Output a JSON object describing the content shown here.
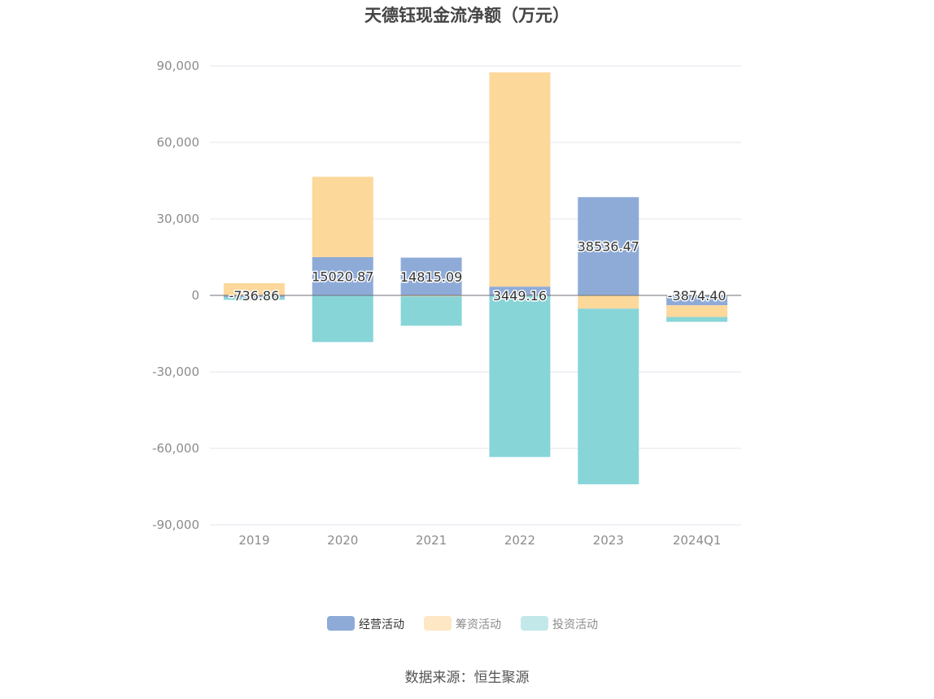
{
  "chart_data": {
    "type": "bar",
    "stacked": true,
    "title": "天德钰现金流净额（万元）",
    "categories": [
      "2019",
      "2020",
      "2021",
      "2022",
      "2023",
      "2024Q1"
    ],
    "ylim": [
      -90000,
      90000
    ],
    "yticks": [
      90000,
      60000,
      30000,
      0,
      -30000,
      -60000,
      -90000
    ],
    "ytick_labels": [
      "90,000",
      "60,000",
      "30,000",
      "0",
      "-30,000",
      "-60,000",
      "-90,000"
    ],
    "grid": true,
    "legend_position": "bottom",
    "series": [
      {
        "name": "经营活动",
        "color": "#8eabd8",
        "values": [
          -736.86,
          15020.87,
          14815.09,
          3449.16,
          38536.47,
          -3874.4
        ],
        "labels": [
          "-736.86",
          "15020.87",
          "14815.09",
          "3449.16",
          "38536.47",
          "-3874.40"
        ]
      },
      {
        "name": "筹资活动",
        "color": "#fdd89b",
        "values": [
          4800,
          31500,
          -400,
          84000,
          -5200,
          -4600
        ]
      },
      {
        "name": "投资活动",
        "color": "#88d5d8",
        "values": [
          -1000,
          -18300,
          -11500,
          -63400,
          -68900,
          -1900
        ]
      }
    ],
    "legend_colors": [
      "#8eabd8",
      "#fde7c4",
      "#c3e8ea"
    ]
  },
  "source": "数据来源：恒生聚源"
}
